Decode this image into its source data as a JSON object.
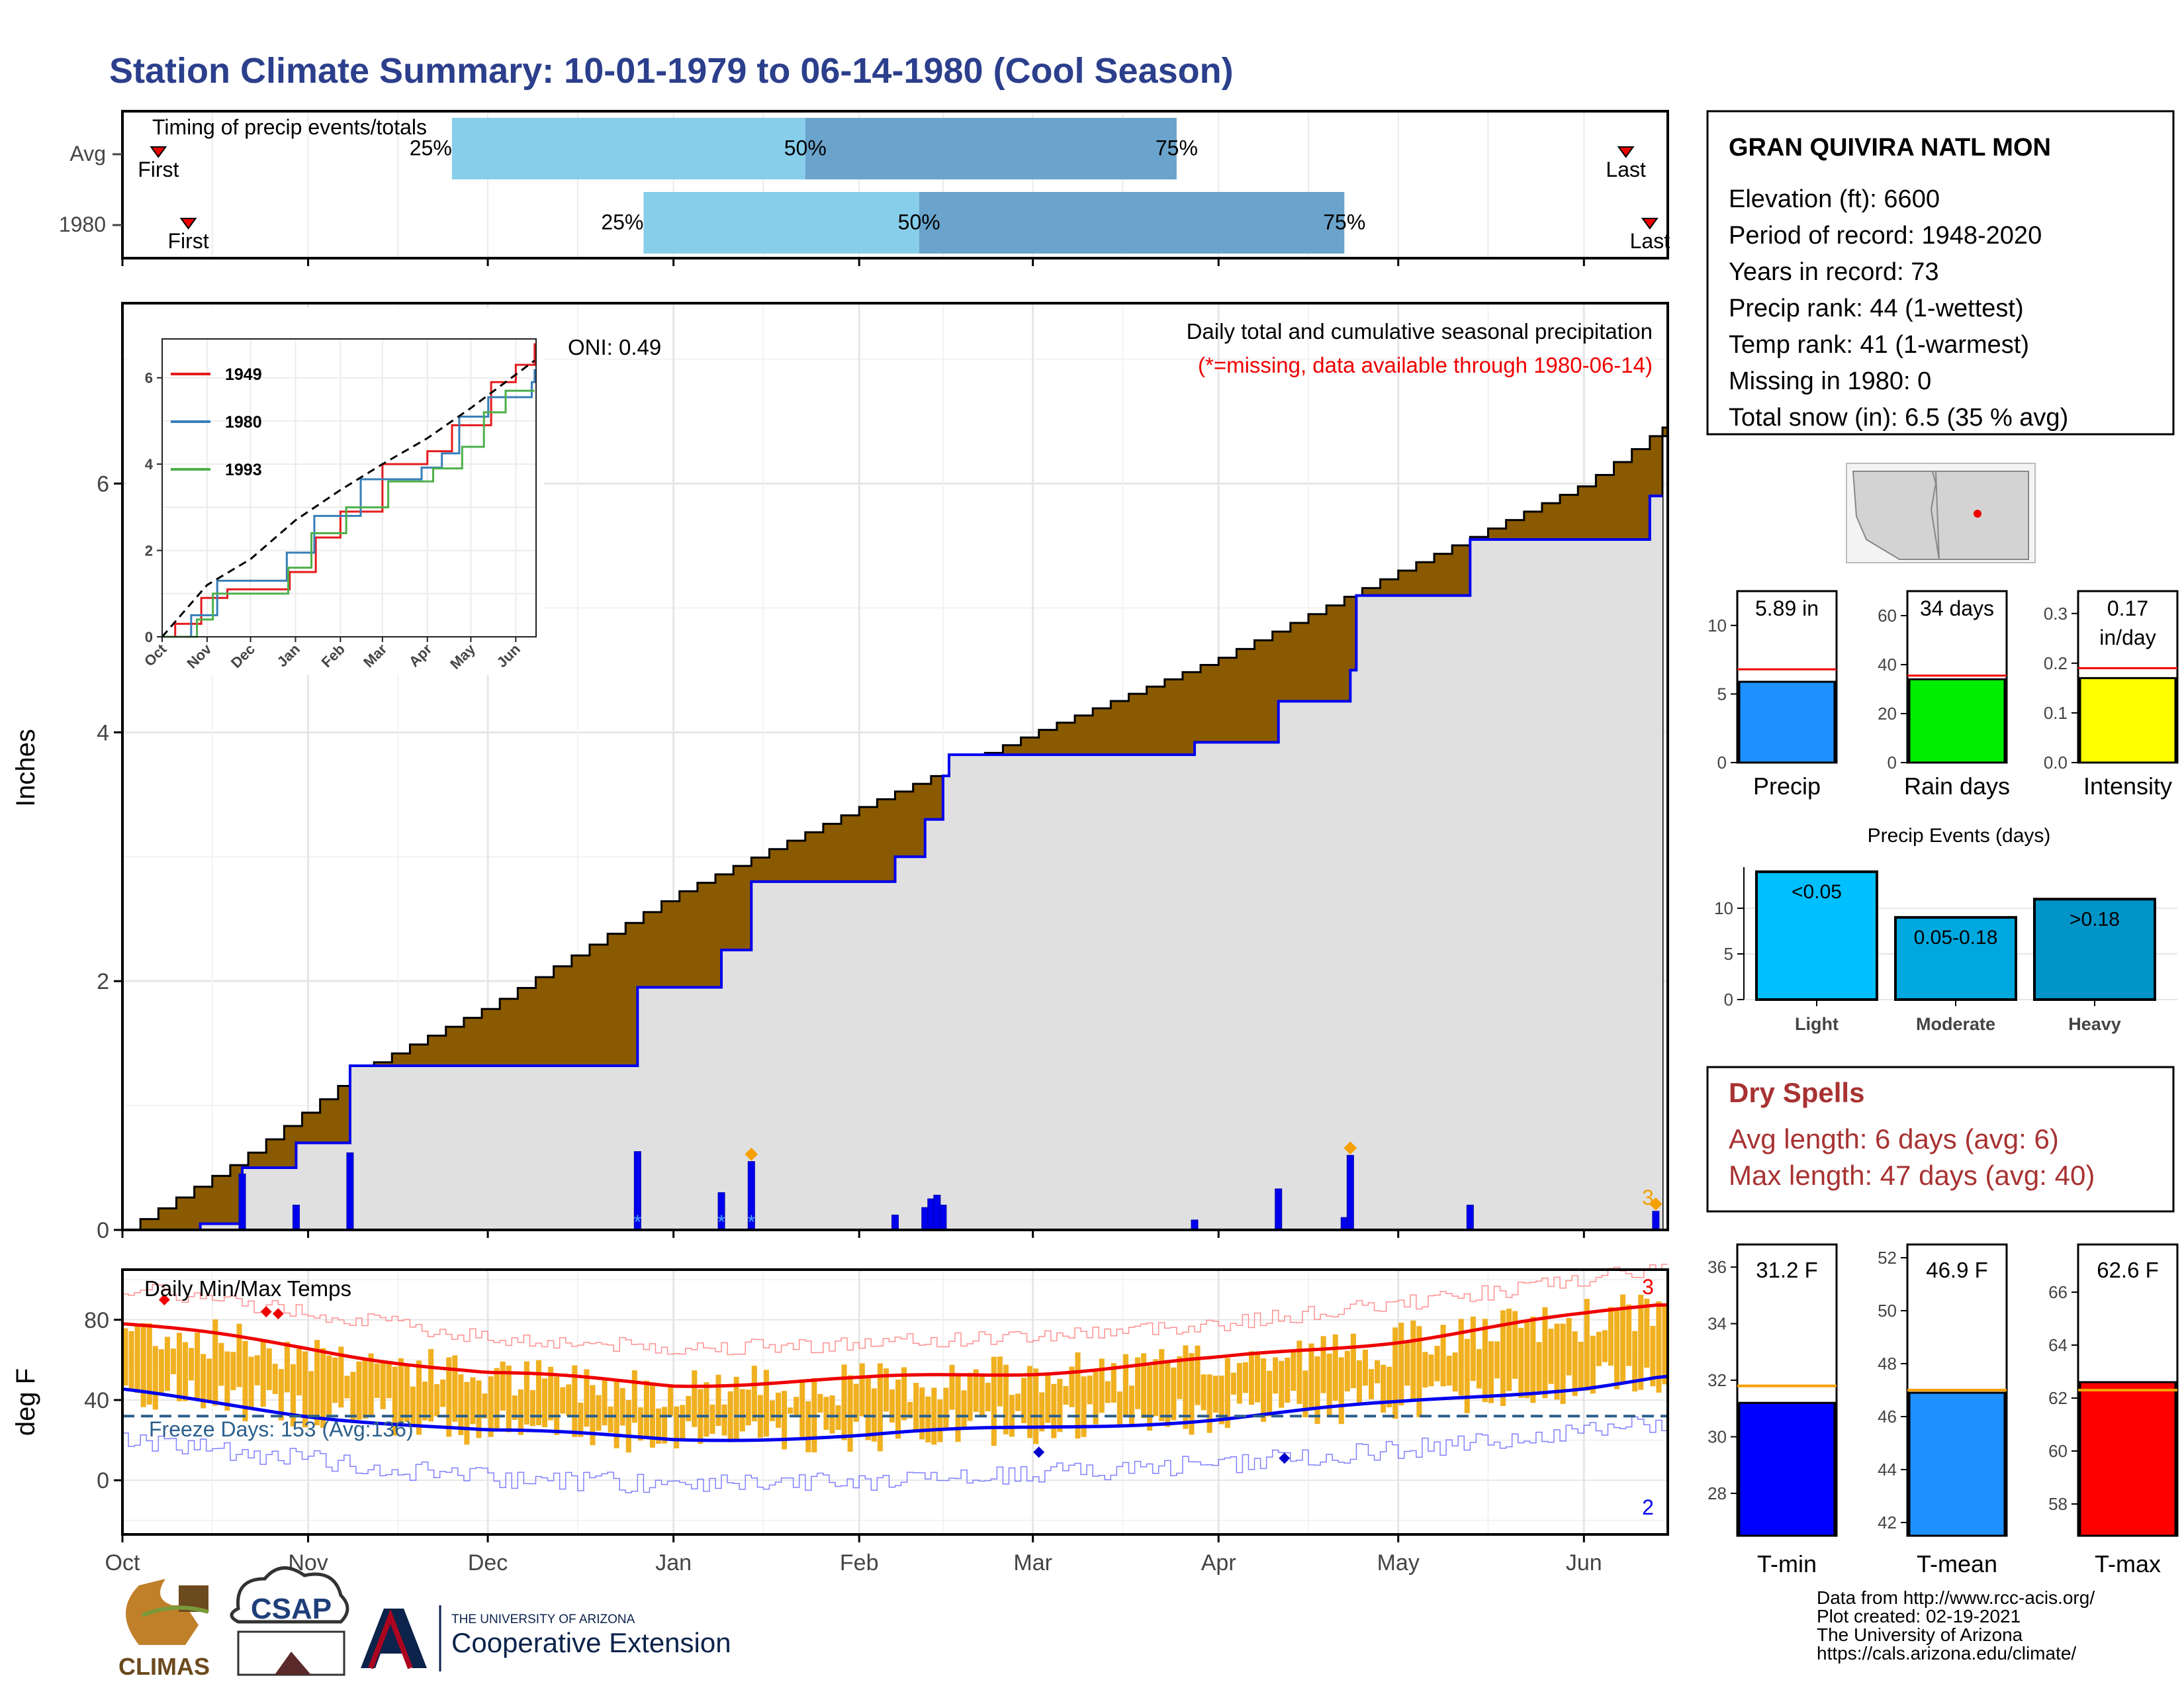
{
  "title": "Station Climate Summary: 10-01-1979 to 06-14-1980 (Cool Season)",
  "colors": {
    "title": "#2b3f8c",
    "precip_fill": "#8a5a00",
    "normal_fill": "#e0e0e0",
    "observed_line": "#0000ee",
    "tmax_line": "#ee0000",
    "tmin_line": "#0000ee",
    "temp_bars": "#f0b020",
    "light_blue": "#87ceeb",
    "mid_blue": "#6aa3cb",
    "dry_spell_text": "#a83232"
  },
  "timing": {
    "label": "Timing of precip events/totals",
    "rows": [
      {
        "name": "Avg",
        "first": "First",
        "last": "Last",
        "p25": "25%",
        "p50": "50%",
        "p75": "75%",
        "first_date": "1979-10-07",
        "p25_date": "1979-11-25",
        "p50_date": "1980-01-23",
        "p75_date": "1980-03-25",
        "last_date": "1980-06-08"
      },
      {
        "name": "1980",
        "first": "First",
        "last": "Last",
        "p25": "25%",
        "p50": "50%",
        "p75": "75%",
        "first_date": "1979-10-12",
        "p25_date": "1979-12-27",
        "p50_date": "1980-02-11",
        "p75_date": "1980-04-22",
        "last_date": "1980-06-12"
      }
    ]
  },
  "info": {
    "station": "GRAN QUIVIRA NATL MON",
    "lines": [
      "Elevation (ft): 6600",
      "Period of record: 1948-2020",
      "Years in record: 73",
      "Precip rank: 44 (1-wettest)",
      "Temp rank: 41 (1-warmest)",
      "Missing in 1980: 0",
      "Total snow (in): 6.5 (35 % avg)"
    ]
  },
  "precip_panel": {
    "ylabel": "Inches",
    "oni": "ONI: 0.49",
    "legend_title": "Daily total and cumulative seasonal precipitation",
    "legend_note": "(*=missing, data available through 1980-06-14)",
    "extreme_label": "3",
    "y_ticks": [
      "0",
      "2",
      "4",
      "6"
    ],
    "month_labels": [
      "Oct",
      "Nov",
      "Dec",
      "Jan",
      "Feb",
      "Mar",
      "Apr",
      "May",
      "Jun"
    ]
  },
  "inset": {
    "y_ticks": [
      "0",
      "2",
      "4",
      "6"
    ],
    "x_ticks": [
      "Oct",
      "Nov",
      "Dec",
      "Jan",
      "Feb",
      "Mar",
      "Apr",
      "May",
      "Jun"
    ],
    "legend": [
      {
        "name": "1949",
        "color": "#e41a1c"
      },
      {
        "name": "1980",
        "color": "#377eb8"
      },
      {
        "name": "1993",
        "color": "#4daf4a"
      }
    ]
  },
  "temp_panel": {
    "ylabel": "deg F",
    "label": "Daily Min/Max Temps",
    "freeze": "Freeze Days: 153 (Avg:136)",
    "y_ticks": [
      "0",
      "40",
      "80"
    ],
    "marker_high": "3",
    "marker_low": "2"
  },
  "summary_bars": [
    {
      "name": "Precip",
      "value_label": "5.89 in",
      "ticks": [
        "0",
        "5",
        "10"
      ],
      "color": "#1e90ff"
    },
    {
      "name": "Rain days",
      "value_label": "34 days",
      "ticks": [
        "0",
        "20",
        "40",
        "60"
      ],
      "color": "#00ee00"
    },
    {
      "name": "Intensity",
      "value_label": "0.17\nin/day",
      "ticks": [
        "0.0",
        "0.1",
        "0.2",
        "0.3"
      ],
      "color": "#ffff00"
    }
  ],
  "precip_events": {
    "title": "Precip Events (days)",
    "ticks": [
      "0",
      "5",
      "10"
    ],
    "bars": [
      {
        "name": "Light",
        "label": "<0.05",
        "value": 14,
        "color": "#00bfff"
      },
      {
        "name": "Moderate",
        "label": "0.05-0.18",
        "value": 9,
        "color": "#00a8e0"
      },
      {
        "name": "Heavy",
        "label": ">0.18",
        "value": 11,
        "color": "#0094c8"
      }
    ]
  },
  "dry_spells": {
    "title": "Dry Spells",
    "avg": "Avg length: 6 days (avg: 6)",
    "max": "Max length: 47 days (avg: 40)"
  },
  "temp_bars": [
    {
      "name": "T-min",
      "value_label": "31.2 F",
      "ticks": [
        "28",
        "30",
        "32",
        "34",
        "36"
      ],
      "color": "#0000ff"
    },
    {
      "name": "T-mean",
      "value_label": "46.9 F",
      "ticks": [
        "42",
        "44",
        "46",
        "48",
        "50",
        "52"
      ],
      "color": "#1e90ff"
    },
    {
      "name": "T-max",
      "value_label": "62.6 F",
      "ticks": [
        "58",
        "60",
        "62",
        "64",
        "66"
      ],
      "color": "#ff0000"
    }
  ],
  "credits": [
    "Data from http://www.rcc-acis.org/",
    "Plot created: 02-19-2021",
    "The University of Arizona",
    "https://cals.arizona.edu/climate/"
  ],
  "logos": {
    "climas": "CLIMAS",
    "csap": "CSAP",
    "ua_line1": "THE UNIVERSITY OF ARIZONA",
    "ua_line2": "Cooperative Extension"
  },
  "chart_data": [
    {
      "type": "area",
      "title": "Daily total and cumulative seasonal precipitation",
      "ylabel": "Inches",
      "ylim": [
        0,
        7
      ],
      "series": [
        {
          "name": "",
          "x": [
            "1979-10-01",
            "1979-10-20",
            "1979-11-10",
            "1979-12-01",
            "1980-01-01",
            "1980-02-01",
            "1980-03-01",
            "1980-04-01",
            "1980-05-01",
            "1980-06-01",
            "1980-06-14"
          ],
          "values": [
            0,
            0.55,
            1.3,
            1.8,
            2.7,
            3.4,
            4.0,
            4.6,
            5.3,
            6.0,
            6.45
          ]
        },
        {
          "name": "",
          "x": [
            "1979-10-01",
            "1979-10-14",
            "1979-10-21",
            "1979-10-30",
            "1979-11-08",
            "1979-12-26",
            "1980-01-09",
            "1980-01-14",
            "1980-02-07",
            "1980-02-12",
            "1980-02-15",
            "1980-02-16",
            "1980-03-28",
            "1980-04-11",
            "1980-04-23",
            "1980-04-24",
            "1980-05-13",
            "1980-06-12",
            "1980-06-14"
          ],
          "values": [
            0,
            0.05,
            0.5,
            0.7,
            1.32,
            1.95,
            2.25,
            2.8,
            3.0,
            3.3,
            3.65,
            3.82,
            3.92,
            4.25,
            4.5,
            5.1,
            5.55,
            5.9,
            5.9
          ]
        }
      ],
      "daily": {
        "x": [
          "1979-10-21",
          "1979-10-30",
          "1979-11-08",
          "1979-12-26",
          "1980-01-09",
          "1980-01-14",
          "1980-02-07",
          "1980-02-12",
          "1980-02-13",
          "1980-02-14",
          "1980-02-15",
          "1980-03-28",
          "1980-04-11",
          "1980-04-22",
          "1980-04-23",
          "1980-05-13",
          "1980-06-13"
        ],
        "values": [
          0.45,
          0.2,
          0.62,
          0.63,
          0.3,
          0.55,
          0.12,
          0.18,
          0.25,
          0.28,
          0.2,
          0.08,
          0.33,
          0.1,
          0.6,
          0.2,
          0.15
        ]
      }
    },
    {
      "type": "line",
      "title": "Daily Min/Max Temps",
      "ylabel": "deg F",
      "ylim": [
        -25,
        100
      ],
      "x": [
        "1979-10-01",
        "1979-11-01",
        "1979-12-01",
        "1980-01-01",
        "1980-02-01",
        "1980-03-01",
        "1980-04-01",
        "1980-05-01",
        "1980-06-01",
        "1980-06-14"
      ],
      "series": [
        {
          "name": "",
          "values": [
            78,
            66,
            53,
            48,
            50,
            54,
            60,
            70,
            82,
            88
          ]
        },
        {
          "name": "",
          "values": [
            44,
            33,
            24,
            21,
            22,
            26,
            31,
            38,
            47,
            52
          ]
        }
      ],
      "freeze_line": 32
    }
  ]
}
